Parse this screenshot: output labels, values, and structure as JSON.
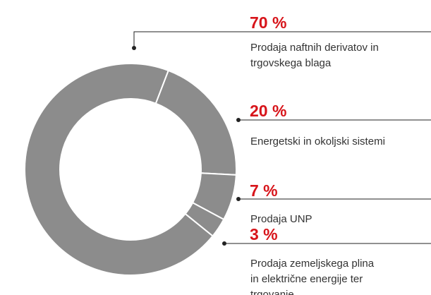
{
  "chart_data": {
    "type": "donut",
    "values": [
      70,
      20,
      7,
      3
    ],
    "value_labels": [
      "70 %",
      "20 %",
      "7 %",
      "3 %"
    ],
    "labels": [
      [
        "Prodaja naftnih derivatov in",
        "trgovskega blaga"
      ],
      [
        "Energetski in okoljski sistemi"
      ],
      [
        "Prodaja UNP"
      ],
      [
        "Prodaja zemeljskega plina",
        "in električne energije ter",
        "trgovanje"
      ]
    ],
    "color": "#8c8c8c",
    "value_label_color": "#d7141a"
  }
}
